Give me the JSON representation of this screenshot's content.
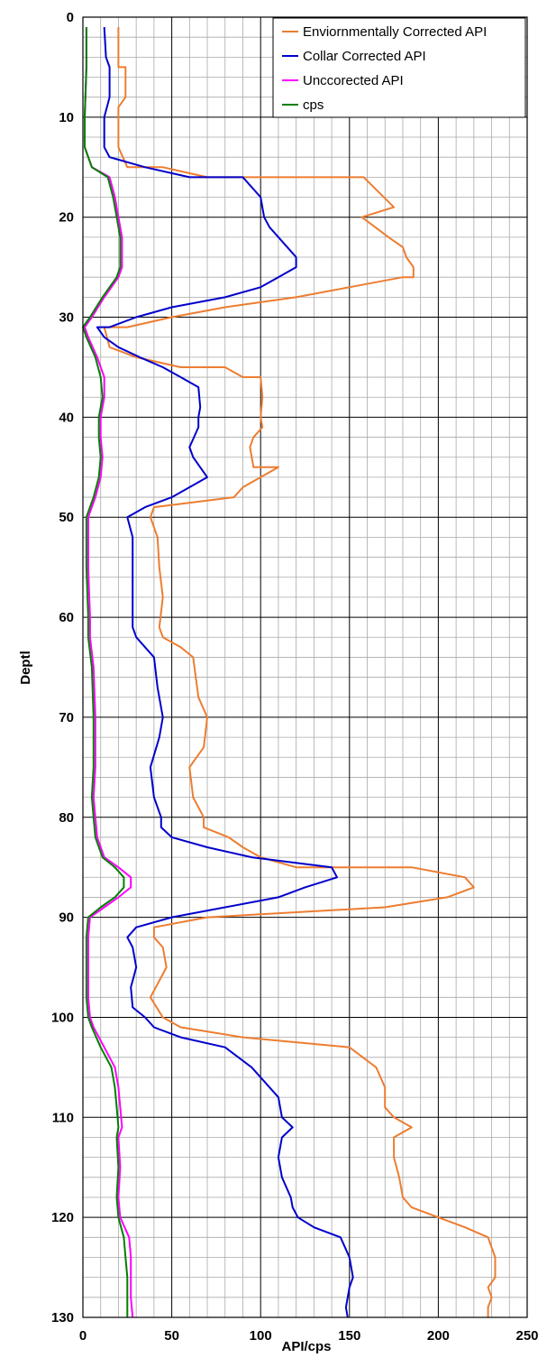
{
  "chart_data": {
    "type": "line",
    "title": "",
    "xlabel": "API/cps",
    "ylabel": "Deptl",
    "xlim": [
      0,
      250
    ],
    "ylim": [
      0,
      130
    ],
    "y_inverted": true,
    "x_ticks": [
      "0",
      "50",
      "100",
      "150",
      "200",
      "250"
    ],
    "y_ticks": [
      "0",
      "10",
      "20",
      "30",
      "40",
      "50",
      "60",
      "70",
      "80",
      "90",
      "100",
      "110",
      "120",
      "130"
    ],
    "grid": true,
    "legend_position": "top-right",
    "series": [
      {
        "name": "Enviornmentally Corrected API",
        "color": "#ED7D31",
        "points": [
          [
            20,
            1
          ],
          [
            20,
            5
          ],
          [
            24,
            5
          ],
          [
            24,
            8
          ],
          [
            20,
            9
          ],
          [
            20,
            13
          ],
          [
            25,
            15
          ],
          [
            45,
            15
          ],
          [
            70,
            16
          ],
          [
            132,
            16
          ],
          [
            158,
            16
          ],
          [
            175,
            19
          ],
          [
            157,
            20
          ],
          [
            172,
            22
          ],
          [
            180,
            23
          ],
          [
            182,
            24
          ],
          [
            186,
            25
          ],
          [
            186,
            26
          ],
          [
            180,
            26
          ],
          [
            150,
            27
          ],
          [
            120,
            28
          ],
          [
            80,
            29
          ],
          [
            50,
            30
          ],
          [
            25,
            31
          ],
          [
            12,
            31
          ],
          [
            15,
            33
          ],
          [
            30,
            34
          ],
          [
            55,
            35
          ],
          [
            80,
            35
          ],
          [
            90,
            36
          ],
          [
            100,
            36
          ],
          [
            101,
            38
          ],
          [
            100,
            40
          ],
          [
            101,
            41
          ],
          [
            96,
            42
          ],
          [
            94,
            43
          ],
          [
            96,
            45
          ],
          [
            110,
            45
          ],
          [
            100,
            46
          ],
          [
            90,
            47
          ],
          [
            85,
            48
          ],
          [
            40,
            49
          ],
          [
            38,
            50
          ],
          [
            42,
            52
          ],
          [
            43,
            55
          ],
          [
            45,
            58
          ],
          [
            43,
            61
          ],
          [
            45,
            62
          ],
          [
            55,
            63
          ],
          [
            62,
            64
          ],
          [
            65,
            68
          ],
          [
            70,
            70
          ],
          [
            68,
            73
          ],
          [
            60,
            75
          ],
          [
            62,
            78
          ],
          [
            68,
            80
          ],
          [
            68,
            81
          ],
          [
            82,
            82
          ],
          [
            90,
            83
          ],
          [
            100,
            84
          ],
          [
            120,
            85
          ],
          [
            185,
            85
          ],
          [
            215,
            86
          ],
          [
            220,
            87
          ],
          [
            205,
            88
          ],
          [
            170,
            89
          ],
          [
            70,
            90
          ],
          [
            40,
            91
          ],
          [
            40,
            92
          ],
          [
            45,
            93
          ],
          [
            47,
            95
          ],
          [
            44,
            96
          ],
          [
            38,
            98
          ],
          [
            45,
            100
          ],
          [
            55,
            101
          ],
          [
            90,
            102
          ],
          [
            150,
            103
          ],
          [
            165,
            105
          ],
          [
            170,
            107
          ],
          [
            170,
            109
          ],
          [
            175,
            110
          ],
          [
            185,
            111
          ],
          [
            175,
            112
          ],
          [
            175,
            114
          ],
          [
            178,
            116
          ],
          [
            180,
            118
          ],
          [
            185,
            119
          ],
          [
            200,
            120
          ],
          [
            215,
            121
          ],
          [
            228,
            122
          ],
          [
            232,
            124
          ],
          [
            232,
            126
          ],
          [
            228,
            127
          ],
          [
            230,
            128
          ],
          [
            228,
            129
          ],
          [
            228,
            130
          ]
        ]
      },
      {
        "name": "Collar Corrected API",
        "color": "#0000CC",
        "points": [
          [
            12,
            1
          ],
          [
            13,
            4
          ],
          [
            15,
            5
          ],
          [
            15,
            8
          ],
          [
            12,
            10
          ],
          [
            12,
            13
          ],
          [
            15,
            14
          ],
          [
            35,
            15
          ],
          [
            60,
            16
          ],
          [
            90,
            16
          ],
          [
            100,
            18
          ],
          [
            102,
            20
          ],
          [
            105,
            21
          ],
          [
            115,
            23
          ],
          [
            120,
            24
          ],
          [
            120,
            25
          ],
          [
            110,
            26
          ],
          [
            100,
            27
          ],
          [
            80,
            28
          ],
          [
            50,
            29
          ],
          [
            30,
            30
          ],
          [
            15,
            31
          ],
          [
            8,
            31
          ],
          [
            12,
            32
          ],
          [
            20,
            33
          ],
          [
            32,
            34
          ],
          [
            45,
            35
          ],
          [
            55,
            36
          ],
          [
            65,
            37
          ],
          [
            66,
            39
          ],
          [
            65,
            40
          ],
          [
            65,
            41
          ],
          [
            60,
            43
          ],
          [
            62,
            44
          ],
          [
            70,
            46
          ],
          [
            60,
            47
          ],
          [
            50,
            48
          ],
          [
            35,
            49
          ],
          [
            25,
            50
          ],
          [
            28,
            52
          ],
          [
            28,
            55
          ],
          [
            28,
            58
          ],
          [
            28,
            61
          ],
          [
            30,
            62
          ],
          [
            35,
            63
          ],
          [
            40,
            64
          ],
          [
            42,
            67
          ],
          [
            45,
            70
          ],
          [
            43,
            72
          ],
          [
            38,
            75
          ],
          [
            40,
            78
          ],
          [
            44,
            80
          ],
          [
            44,
            81
          ],
          [
            50,
            82
          ],
          [
            70,
            83
          ],
          [
            95,
            84
          ],
          [
            140,
            85
          ],
          [
            143,
            86
          ],
          [
            125,
            87
          ],
          [
            110,
            88
          ],
          [
            80,
            89
          ],
          [
            50,
            90
          ],
          [
            30,
            91
          ],
          [
            25,
            92
          ],
          [
            28,
            93
          ],
          [
            30,
            95
          ],
          [
            27,
            97
          ],
          [
            28,
            99
          ],
          [
            35,
            100
          ],
          [
            40,
            101
          ],
          [
            55,
            102
          ],
          [
            80,
            103
          ],
          [
            95,
            105
          ],
          [
            105,
            107
          ],
          [
            110,
            108
          ],
          [
            112,
            110
          ],
          [
            118,
            111
          ],
          [
            112,
            112
          ],
          [
            110,
            114
          ],
          [
            112,
            116
          ],
          [
            117,
            118
          ],
          [
            118,
            119
          ],
          [
            121,
            120
          ],
          [
            130,
            121
          ],
          [
            145,
            122
          ],
          [
            150,
            124
          ],
          [
            152,
            126
          ],
          [
            150,
            127
          ],
          [
            148,
            129
          ],
          [
            149,
            130
          ]
        ]
      },
      {
        "name": "Unccorected API",
        "color": "#FF00FF",
        "points": [
          [
            2,
            1
          ],
          [
            2,
            5
          ],
          [
            1,
            10
          ],
          [
            1,
            13
          ],
          [
            5,
            15
          ],
          [
            15,
            16
          ],
          [
            18,
            18
          ],
          [
            20,
            20
          ],
          [
            22,
            22
          ],
          [
            22,
            25
          ],
          [
            20,
            26
          ],
          [
            12,
            28
          ],
          [
            5,
            30
          ],
          [
            1,
            31
          ],
          [
            3,
            32
          ],
          [
            8,
            34
          ],
          [
            12,
            36
          ],
          [
            12,
            38
          ],
          [
            10,
            40
          ],
          [
            10,
            42
          ],
          [
            11,
            44
          ],
          [
            10,
            46
          ],
          [
            7,
            48
          ],
          [
            3,
            50
          ],
          [
            3,
            55
          ],
          [
            4,
            60
          ],
          [
            4,
            62
          ],
          [
            6,
            65
          ],
          [
            7,
            70
          ],
          [
            7,
            75
          ],
          [
            6,
            78
          ],
          [
            7,
            80
          ],
          [
            8,
            82
          ],
          [
            12,
            84
          ],
          [
            20,
            85
          ],
          [
            27,
            86
          ],
          [
            27,
            87
          ],
          [
            20,
            88
          ],
          [
            12,
            89
          ],
          [
            4,
            90
          ],
          [
            3,
            92
          ],
          [
            3,
            95
          ],
          [
            3,
            98
          ],
          [
            4,
            100
          ],
          [
            6,
            101
          ],
          [
            12,
            103
          ],
          [
            18,
            105
          ],
          [
            20,
            107
          ],
          [
            21,
            109
          ],
          [
            22,
            111
          ],
          [
            20,
            112
          ],
          [
            21,
            115
          ],
          [
            20,
            118
          ],
          [
            21,
            120
          ],
          [
            26,
            122
          ],
          [
            27,
            124
          ],
          [
            27,
            126
          ],
          [
            27,
            128
          ],
          [
            28,
            130
          ]
        ]
      },
      {
        "name": "cps",
        "color": "#008000",
        "points": [
          [
            2,
            1
          ],
          [
            2,
            5
          ],
          [
            1,
            10
          ],
          [
            1,
            13
          ],
          [
            5,
            15
          ],
          [
            14,
            16
          ],
          [
            17,
            18
          ],
          [
            19,
            20
          ],
          [
            21,
            22
          ],
          [
            21,
            25
          ],
          [
            19,
            26
          ],
          [
            11,
            28
          ],
          [
            4,
            30
          ],
          [
            0,
            31
          ],
          [
            2,
            32
          ],
          [
            7,
            34
          ],
          [
            10,
            36
          ],
          [
            11,
            38
          ],
          [
            9,
            40
          ],
          [
            9,
            42
          ],
          [
            10,
            44
          ],
          [
            9,
            46
          ],
          [
            6,
            48
          ],
          [
            2,
            50
          ],
          [
            2,
            55
          ],
          [
            3,
            60
          ],
          [
            3,
            62
          ],
          [
            5,
            65
          ],
          [
            6,
            70
          ],
          [
            6,
            75
          ],
          [
            5,
            78
          ],
          [
            6,
            80
          ],
          [
            7,
            82
          ],
          [
            11,
            84
          ],
          [
            18,
            85
          ],
          [
            23,
            86
          ],
          [
            23,
            87
          ],
          [
            18,
            88
          ],
          [
            10,
            89
          ],
          [
            3,
            90
          ],
          [
            2,
            92
          ],
          [
            2,
            95
          ],
          [
            2,
            98
          ],
          [
            3,
            100
          ],
          [
            5,
            101
          ],
          [
            10,
            103
          ],
          [
            16,
            105
          ],
          [
            18,
            107
          ],
          [
            19,
            109
          ],
          [
            20,
            111
          ],
          [
            19,
            112
          ],
          [
            20,
            115
          ],
          [
            19,
            118
          ],
          [
            20,
            120
          ],
          [
            23,
            122
          ],
          [
            24,
            124
          ],
          [
            25,
            126
          ],
          [
            25,
            128
          ],
          [
            25,
            130
          ]
        ]
      }
    ]
  }
}
